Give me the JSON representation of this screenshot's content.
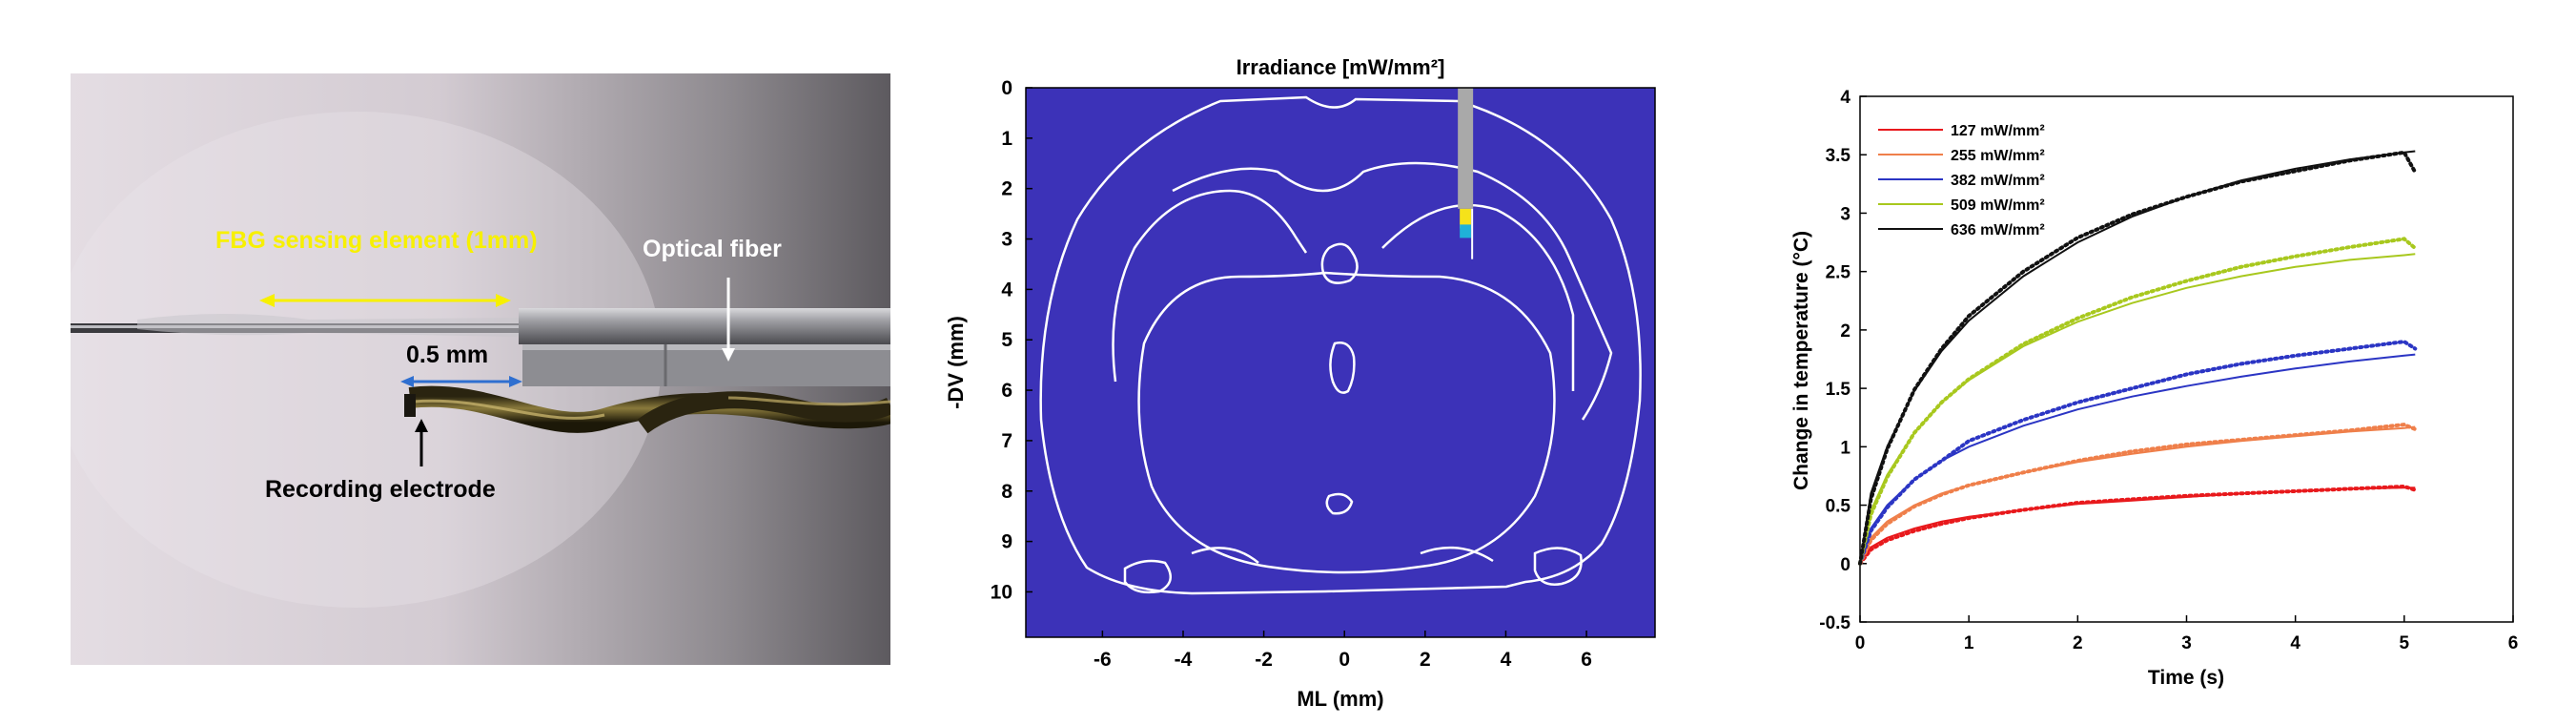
{
  "panel_a": {
    "fbg_label": "FBG sensing element (1mm)",
    "fiber_label": "Optical fiber",
    "gap_label": "0.5 mm",
    "electrode_label": "Recording electrode",
    "colors": {
      "fbg": "#f7f000",
      "gap": "#2f6fd0",
      "text_dark": "#000000",
      "text_light": "#ffffff"
    }
  },
  "panel_b": {
    "title": "Irradiance [mW/mm²]",
    "xlabel": "ML (mm)",
    "ylabel": "-DV (mm)",
    "colors": {
      "background": "#3c32b8",
      "outline": "#ffffff",
      "fiber": "#a9a9a9"
    }
  },
  "chart_data": [
    {
      "type": "heatmap",
      "title": "Irradiance [mW/mm²]",
      "xlabel": "ML (mm)",
      "ylabel": "-DV (mm)",
      "xticks": [
        -6,
        -4,
        -2,
        0,
        2,
        4,
        6
      ],
      "yticks": [
        0,
        1,
        2,
        3,
        4,
        5,
        6,
        7,
        8,
        9,
        10
      ],
      "xlim": [
        -7.9,
        7.7
      ],
      "ylim": [
        0,
        10.9
      ],
      "fiber": {
        "ml": 3,
        "dv_top": 0,
        "dv_tip": 2.4
      },
      "hotspot": {
        "ml": 3,
        "dv": 2.6
      }
    },
    {
      "type": "line",
      "xlabel": "Time (s)",
      "ylabel": "Change in temperature (°C)",
      "xlim": [
        0,
        6
      ],
      "ylim": [
        -0.5,
        4
      ],
      "xticks": [
        0,
        1,
        2,
        3,
        4,
        5,
        6
      ],
      "yticks": [
        -0.5,
        0,
        0.5,
        1,
        1.5,
        2,
        2.5,
        3,
        3.5,
        4
      ],
      "legend_position": "top-left",
      "x": [
        0,
        0.1,
        0.25,
        0.5,
        0.75,
        1,
        1.5,
        2,
        2.5,
        3,
        3.5,
        4,
        4.5,
        5,
        5.1
      ],
      "series": [
        {
          "name": "127 mW/mm²",
          "color": "#e8191c",
          "fit": [
            0,
            0.14,
            0.22,
            0.3,
            0.36,
            0.4,
            0.46,
            0.51,
            0.54,
            0.57,
            0.6,
            0.62,
            0.64,
            0.65,
            0.65
          ],
          "measured": [
            0,
            0.12,
            0.2,
            0.28,
            0.34,
            0.39,
            0.46,
            0.52,
            0.55,
            0.58,
            0.6,
            0.62,
            0.64,
            0.66,
            0.63
          ]
        },
        {
          "name": "255 mW/mm²",
          "color": "#ef7f4a",
          "fit": [
            0,
            0.22,
            0.36,
            0.5,
            0.6,
            0.67,
            0.78,
            0.87,
            0.94,
            1.0,
            1.05,
            1.09,
            1.13,
            1.16,
            1.17
          ],
          "measured": [
            0,
            0.2,
            0.34,
            0.49,
            0.59,
            0.67,
            0.78,
            0.88,
            0.96,
            1.02,
            1.06,
            1.1,
            1.14,
            1.19,
            1.15
          ]
        },
        {
          "name": "382 mW/mm²",
          "color": "#2b35c4",
          "fit": [
            0,
            0.3,
            0.5,
            0.72,
            0.88,
            1.0,
            1.18,
            1.32,
            1.43,
            1.52,
            1.6,
            1.67,
            1.73,
            1.78,
            1.79
          ],
          "measured": [
            0,
            0.28,
            0.48,
            0.72,
            0.88,
            1.05,
            1.23,
            1.38,
            1.5,
            1.62,
            1.71,
            1.78,
            1.84,
            1.9,
            1.84
          ]
        },
        {
          "name": "509 mW/mm²",
          "color": "#a8c81e",
          "fit": [
            0,
            0.45,
            0.76,
            1.12,
            1.38,
            1.57,
            1.86,
            2.07,
            2.23,
            2.36,
            2.46,
            2.54,
            2.6,
            2.64,
            2.65
          ],
          "measured": [
            0,
            0.42,
            0.74,
            1.12,
            1.38,
            1.58,
            1.88,
            2.1,
            2.28,
            2.42,
            2.54,
            2.63,
            2.71,
            2.78,
            2.7
          ]
        },
        {
          "name": "636 mW/mm²",
          "color": "#111111",
          "fit": [
            0,
            0.6,
            1.0,
            1.48,
            1.82,
            2.08,
            2.46,
            2.75,
            2.97,
            3.14,
            3.28,
            3.38,
            3.46,
            3.52,
            3.53
          ],
          "measured": [
            0,
            0.55,
            0.98,
            1.49,
            1.84,
            2.12,
            2.5,
            2.79,
            2.99,
            3.14,
            3.27,
            3.36,
            3.45,
            3.52,
            3.35
          ]
        }
      ]
    }
  ]
}
